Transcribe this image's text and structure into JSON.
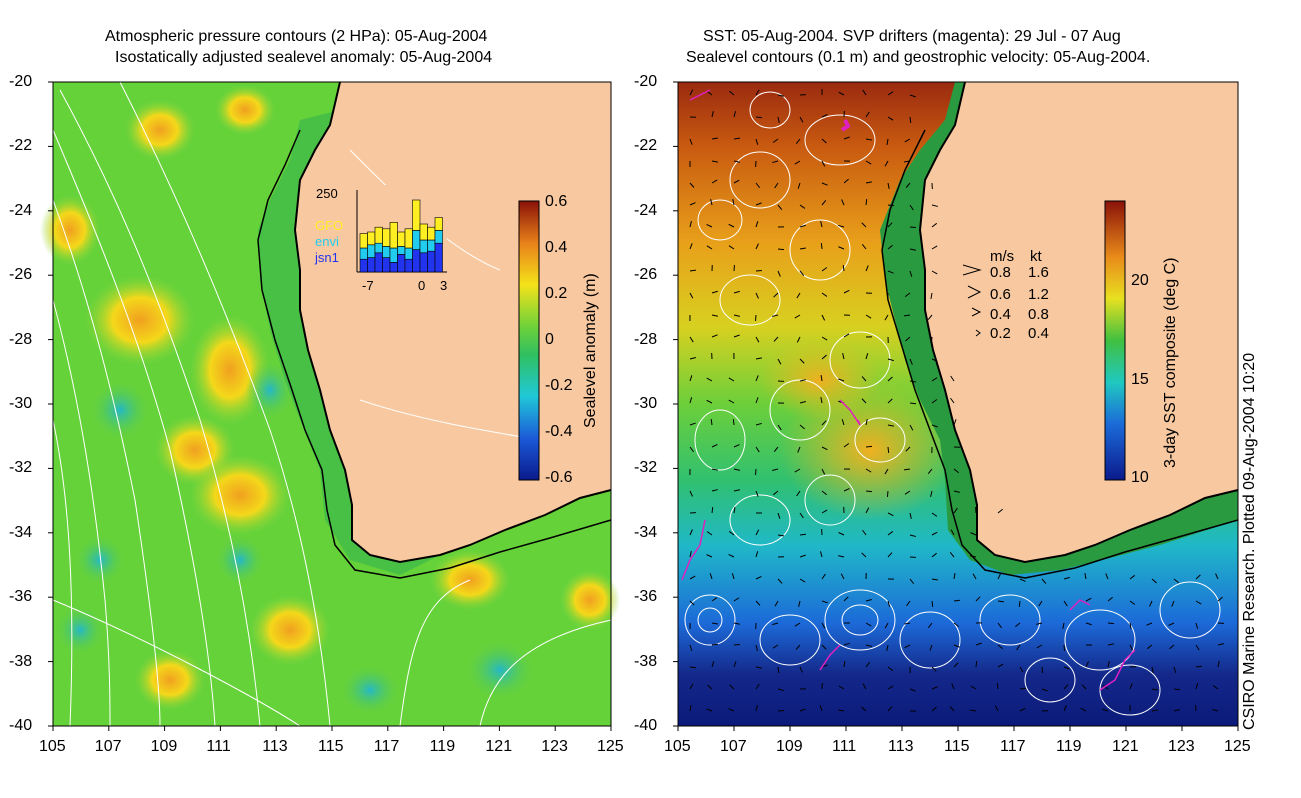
{
  "left_panel": {
    "title_line1": "Atmospheric pressure contours (2 HPa): 05-Aug-2004",
    "title_line2": "Isostatically adjusted sealevel anomaly: 05-Aug-2004",
    "colorbar": {
      "label": "Sealevel anomaly (m)",
      "ticks": [
        "0.6",
        "0.4",
        "0.2",
        "0",
        "-0.2",
        "-0.4",
        "-0.6"
      ],
      "range": [
        -0.6,
        0.6
      ]
    },
    "inset": {
      "ymax_label": "250",
      "x_labels": [
        "-7",
        "0",
        "3"
      ],
      "legend": [
        {
          "label": "GFO",
          "color": "#ffee22"
        },
        {
          "label": "envi",
          "color": "#22ccee"
        },
        {
          "label": "jsn1",
          "color": "#2233ee"
        }
      ],
      "bars": [
        {
          "jsn1": 40,
          "envi": 35,
          "gfo": 45
        },
        {
          "jsn1": 45,
          "envi": 40,
          "gfo": 40
        },
        {
          "jsn1": 60,
          "envi": 30,
          "gfo": 50
        },
        {
          "jsn1": 45,
          "envi": 35,
          "gfo": 55
        },
        {
          "jsn1": 30,
          "envi": 45,
          "gfo": 80
        },
        {
          "jsn1": 55,
          "envi": 25,
          "gfo": 45
        },
        {
          "jsn1": 40,
          "envi": 35,
          "gfo": 60
        },
        {
          "jsn1": 70,
          "envi": 60,
          "gfo": 95
        },
        {
          "jsn1": 60,
          "envi": 40,
          "gfo": 50
        },
        {
          "jsn1": 65,
          "envi": 35,
          "gfo": 40
        },
        {
          "jsn1": 90,
          "envi": 40,
          "gfo": 40
        }
      ]
    }
  },
  "right_panel": {
    "title_line1": "SST: 05-Aug-2004. SVP drifters (magenta): 29 Jul - 07 Aug",
    "title_line2": "Sealevel contours (0.1 m) and geostrophic velocity: 05-Aug-2004.",
    "colorbar": {
      "label": "3-day SST composite (deg C)",
      "ticks": [
        "20",
        "15",
        "10"
      ],
      "range": [
        10,
        24
      ]
    },
    "velocity_legend": {
      "header_ms": "m/s",
      "header_kt": "kt",
      "rows": [
        {
          "ms": "0.8",
          "kt": "1.6"
        },
        {
          "ms": "0.6",
          "kt": "1.2"
        },
        {
          "ms": "0.4",
          "kt": "0.8"
        },
        {
          "ms": "0.2",
          "kt": "0.4"
        }
      ]
    }
  },
  "axes": {
    "y_labels": [
      "-20",
      "-22",
      "-24",
      "-26",
      "-28",
      "-30",
      "-32",
      "-34",
      "-36",
      "-38",
      "-40"
    ],
    "x_labels": [
      "105",
      "107",
      "109",
      "111",
      "113",
      "115",
      "117",
      "119",
      "121",
      "123",
      "125"
    ]
  },
  "credit": "CSIRO Marine Research. Plotted 09-Aug-2004 10:20",
  "colors": {
    "land": "#f8c9a0",
    "anomaly_base": "#5fcf3a",
    "sst_warm": "#a03010",
    "sst_cold": "#102a9a"
  }
}
